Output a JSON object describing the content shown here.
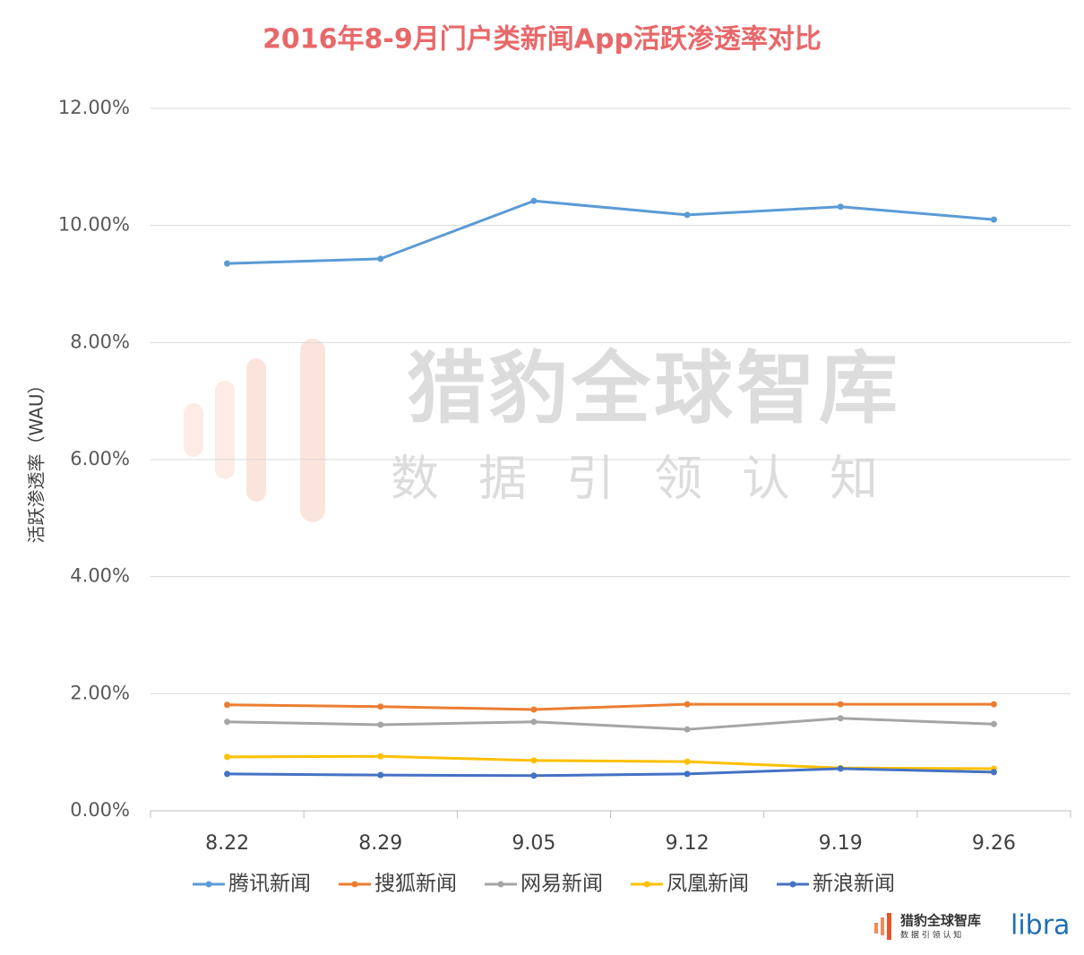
{
  "chart_data": {
    "type": "line",
    "title": "2016年8-9月门户类新闻App活跃渗透率对比",
    "y_label": "活跃渗透率（WAU）",
    "categories": [
      "8.22",
      "8.29",
      "9.05",
      "9.12",
      "9.19",
      "9.26"
    ],
    "series": [
      {
        "name": "腾讯新闻",
        "color": "#5b9bd5",
        "values": [
          9.35,
          9.43,
          10.42,
          10.18,
          10.32,
          10.1
        ]
      },
      {
        "name": "搜狐新闻",
        "color": "#ed7d31",
        "values": [
          1.81,
          1.78,
          1.73,
          1.82,
          1.82,
          1.82
        ]
      },
      {
        "name": "网易新闻",
        "color": "#a5a5a5",
        "values": [
          1.52,
          1.47,
          1.52,
          1.39,
          1.58,
          1.48
        ]
      },
      {
        "name": "凤凰新闻",
        "color": "#ffc000",
        "values": [
          0.92,
          0.93,
          0.86,
          0.84,
          0.73,
          0.72
        ]
      },
      {
        "name": "新浪新闻",
        "color": "#4472c4",
        "values": [
          0.63,
          0.61,
          0.6,
          0.63,
          0.72,
          0.66
        ]
      }
    ],
    "ylim": [
      0,
      12
    ],
    "yticks": [
      {
        "value": 0,
        "label": "0.00%"
      },
      {
        "value": 2,
        "label": "2.00%"
      },
      {
        "value": 4,
        "label": "4.00%"
      },
      {
        "value": 6,
        "label": "6.00%"
      },
      {
        "value": 8,
        "label": "8.00%"
      },
      {
        "value": 10,
        "label": "10.00%"
      },
      {
        "value": 12,
        "label": "12.00%"
      }
    ],
    "grid": true
  },
  "watermark": {
    "title": "猎豹全球智库",
    "subtitle": "数据引领认知"
  },
  "logo": {
    "name": "猎豹全球智库",
    "tagline": "数 据 引 领 认 知",
    "brand": "libra"
  }
}
